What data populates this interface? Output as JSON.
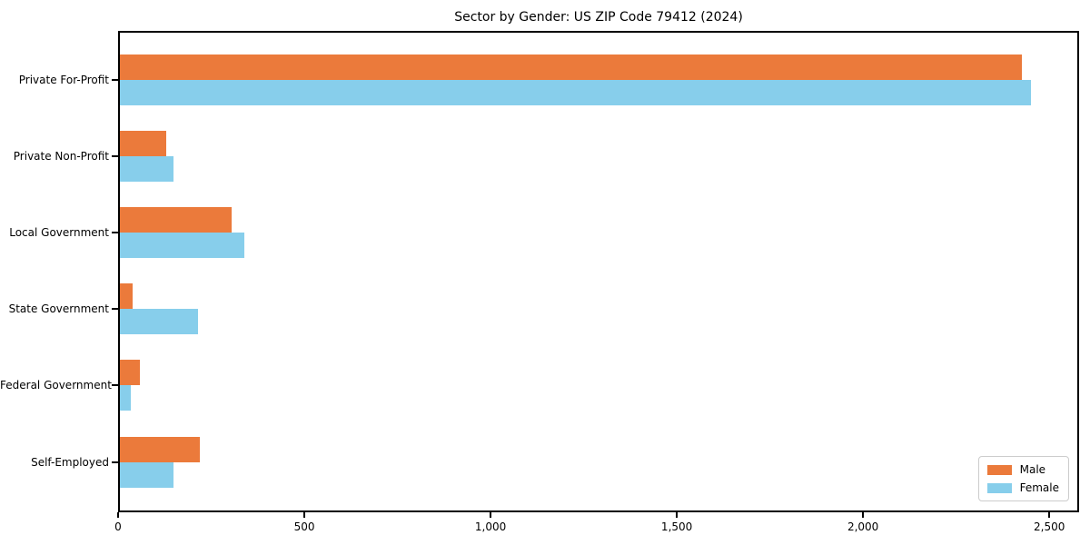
{
  "chart_data": {
    "type": "bar",
    "orientation": "horizontal",
    "title": "Sector by Gender: US ZIP Code 79412 (2024)",
    "xlabel": "",
    "ylabel": "",
    "categories": [
      "Private For-Profit",
      "Private Non-Profit",
      "Local Government",
      "State Government",
      "Federal Government",
      "Self-Employed"
    ],
    "series": [
      {
        "name": "Male",
        "color": "#eb7a3b",
        "values": [
          2430,
          125,
          300,
          35,
          55,
          215
        ]
      },
      {
        "name": "Female",
        "color": "#87ceeb",
        "values": [
          2455,
          145,
          335,
          210,
          30,
          145
        ]
      }
    ],
    "xlim": [
      0,
      2580
    ],
    "x_ticks": [
      0,
      500,
      1000,
      1500,
      2000,
      2500
    ],
    "x_tick_labels": [
      "0",
      "500",
      "1,000",
      "1,500",
      "2,000",
      "2,500"
    ],
    "grid": false,
    "legend": {
      "position": "lower right"
    },
    "colors": {
      "axis": "#000000",
      "legend_border": "#cccccc",
      "background": "#ffffff"
    }
  }
}
